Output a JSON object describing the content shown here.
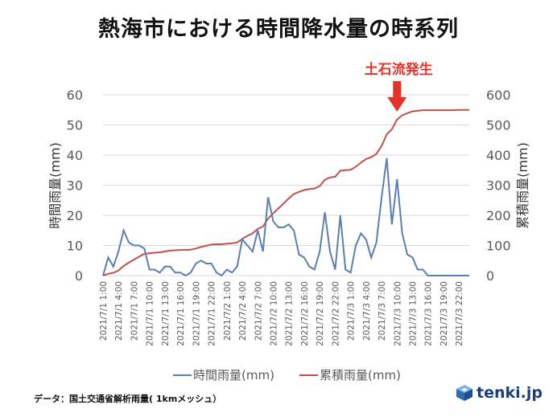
{
  "title": "熱海市における時間降水量の時系列",
  "annotation": "土石流発生",
  "source": "データ：国土交通省解析雨量( 1kmメッシュ）",
  "logo_text": "tenki.jp",
  "colors": {
    "hourly": "#5b7fb0",
    "cumulative": "#c0504d",
    "annotation": "#e8302a",
    "grid": "#d9d9d9",
    "axis_text": "#595959"
  },
  "chart_data": {
    "type": "line",
    "ylabel": "時間雨量(mm)",
    "y2label": "累積雨量(mm)",
    "ylim": [
      0,
      60
    ],
    "y2lim": [
      0,
      600
    ],
    "yticks": [
      0,
      10,
      20,
      30,
      40,
      50,
      60
    ],
    "y2ticks": [
      0,
      100,
      200,
      300,
      400,
      500,
      600
    ],
    "grid": true,
    "legend": "bottom",
    "x_tick_labels": [
      "2021/7/1 1:00",
      "2021/7/1 4:00",
      "2021/7/1 7:00",
      "2021/7/1 10:00",
      "2021/7/1 13:00",
      "2021/7/1 16:00",
      "2021/7/1 19:00",
      "2021/7/1 22:00",
      "2021/7/2 1:00",
      "2021/7/2 4:00",
      "2021/7/2 7:00",
      "2021/7/2 10:00",
      "2021/7/2 13:00",
      "2021/7/2 16:00",
      "2021/7/2 19:00",
      "2021/7/2 22:00",
      "2021/7/3 1:00",
      "2021/7/3 4:00",
      "2021/7/3 7:00",
      "2021/7/3 10:00",
      "2021/7/3 13:00",
      "2021/7/3 16:00",
      "2021/7/3 19:00",
      "2021/7/3 22:00"
    ],
    "x": [
      "2021/7/1 1:00",
      "2021/7/1 2:00",
      "2021/7/1 3:00",
      "2021/7/1 4:00",
      "2021/7/1 5:00",
      "2021/7/1 6:00",
      "2021/7/1 7:00",
      "2021/7/1 8:00",
      "2021/7/1 9:00",
      "2021/7/1 10:00",
      "2021/7/1 11:00",
      "2021/7/1 12:00",
      "2021/7/1 13:00",
      "2021/7/1 14:00",
      "2021/7/1 15:00",
      "2021/7/1 16:00",
      "2021/7/1 17:00",
      "2021/7/1 18:00",
      "2021/7/1 19:00",
      "2021/7/1 20:00",
      "2021/7/1 21:00",
      "2021/7/1 22:00",
      "2021/7/1 23:00",
      "2021/7/2 0:00",
      "2021/7/2 1:00",
      "2021/7/2 2:00",
      "2021/7/2 3:00",
      "2021/7/2 4:00",
      "2021/7/2 5:00",
      "2021/7/2 6:00",
      "2021/7/2 7:00",
      "2021/7/2 8:00",
      "2021/7/2 9:00",
      "2021/7/2 10:00",
      "2021/7/2 11:00",
      "2021/7/2 12:00",
      "2021/7/2 13:00",
      "2021/7/2 14:00",
      "2021/7/2 15:00",
      "2021/7/2 16:00",
      "2021/7/2 17:00",
      "2021/7/2 18:00",
      "2021/7/2 19:00",
      "2021/7/2 20:00",
      "2021/7/2 21:00",
      "2021/7/2 22:00",
      "2021/7/2 23:00",
      "2021/7/3 0:00",
      "2021/7/3 1:00",
      "2021/7/3 2:00",
      "2021/7/3 3:00",
      "2021/7/3 4:00",
      "2021/7/3 5:00",
      "2021/7/3 6:00",
      "2021/7/3 7:00",
      "2021/7/3 8:00",
      "2021/7/3 9:00",
      "2021/7/3 10:00",
      "2021/7/3 11:00",
      "2021/7/3 12:00",
      "2021/7/3 13:00",
      "2021/7/3 14:00",
      "2021/7/3 15:00",
      "2021/7/3 16:00",
      "2021/7/3 17:00",
      "2021/7/3 18:00",
      "2021/7/3 19:00",
      "2021/7/3 20:00",
      "2021/7/3 21:00",
      "2021/7/3 22:00",
      "2021/7/3 23:00",
      "2021/7/4 0:00"
    ],
    "annotation_at": "2021/7/3 10:00",
    "series": [
      {
        "name": "時間雨量(mm)",
        "axis": "left",
        "values": [
          0,
          6,
          3,
          8,
          15,
          11,
          10,
          10,
          9,
          2,
          2,
          1,
          3,
          3,
          1,
          1,
          0,
          1,
          4,
          5,
          4,
          4,
          1,
          0,
          2,
          1,
          3,
          12,
          10,
          8,
          15,
          8,
          26,
          18,
          16,
          16,
          17,
          15,
          7,
          6,
          3,
          2,
          8,
          21,
          8,
          2,
          20,
          2,
          1,
          10,
          14,
          12,
          6,
          11,
          26,
          39,
          17,
          32,
          14,
          7,
          6,
          2,
          2,
          0,
          0,
          0,
          0,
          0,
          0,
          0,
          0,
          0
        ]
      },
      {
        "name": "累積雨量(mm)",
        "axis": "right",
        "values": [
          0,
          6,
          9,
          17,
          32,
          43,
          53,
          63,
          72,
          74,
          76,
          77,
          80,
          83,
          84,
          85,
          85,
          86,
          90,
          95,
          99,
          103,
          104,
          104,
          106,
          107,
          110,
          122,
          132,
          140,
          155,
          163,
          189,
          207,
          223,
          239,
          256,
          271,
          278,
          284,
          287,
          289,
          297,
          318,
          326,
          328,
          348,
          350,
          351,
          361,
          375,
          387,
          393,
          404,
          430,
          469,
          486,
          518,
          532,
          539,
          545,
          547,
          549,
          549,
          549,
          549,
          549,
          549,
          549,
          550,
          550,
          550
        ]
      }
    ]
  }
}
